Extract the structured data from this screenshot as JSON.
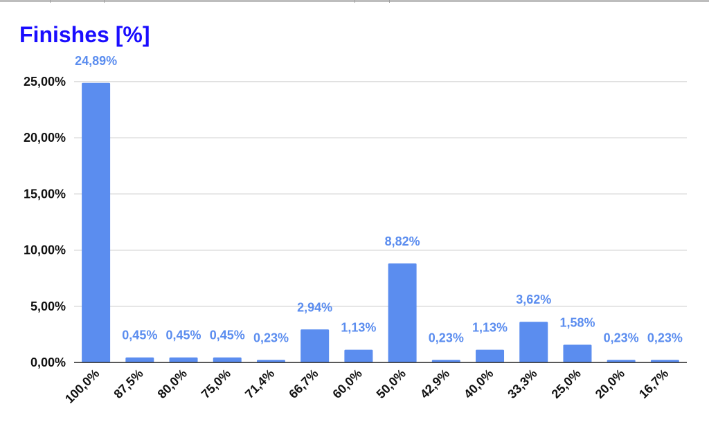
{
  "chart_data": {
    "type": "bar",
    "title": "Finishes [%]",
    "xlabel": "",
    "ylabel": "",
    "categories": [
      "100,0%",
      "87,5%",
      "80,0%",
      "75,0%",
      "71,4%",
      "66,7%",
      "60,0%",
      "50,0%",
      "42,9%",
      "40,0%",
      "33,3%",
      "25,0%",
      "20,0%",
      "16,7%"
    ],
    "values": [
      24.89,
      0.45,
      0.45,
      0.45,
      0.23,
      2.94,
      1.13,
      8.82,
      0.23,
      1.13,
      3.62,
      1.58,
      0.23,
      0.23
    ],
    "data_labels": [
      "24,89%",
      "0,45%",
      "0,45%",
      "0,45%",
      "0,23%",
      "2,94%",
      "1,13%",
      "8,82%",
      "0,23%",
      "1,13%",
      "3,62%",
      "1,58%",
      "0,23%",
      "0,23%"
    ],
    "yticks": [
      0,
      5,
      10,
      15,
      20,
      25
    ],
    "ytick_labels": [
      "0,00%",
      "5,00%",
      "10,00%",
      "15,00%",
      "20,00%",
      "25,00%"
    ],
    "ylim": [
      0,
      25
    ],
    "grid": true,
    "legend": "none",
    "colors": {
      "bar": "#5b8def",
      "label": "#5b8def",
      "title": "#1a0dff",
      "grid": "#cfcfcf",
      "axis": "#222222"
    }
  }
}
